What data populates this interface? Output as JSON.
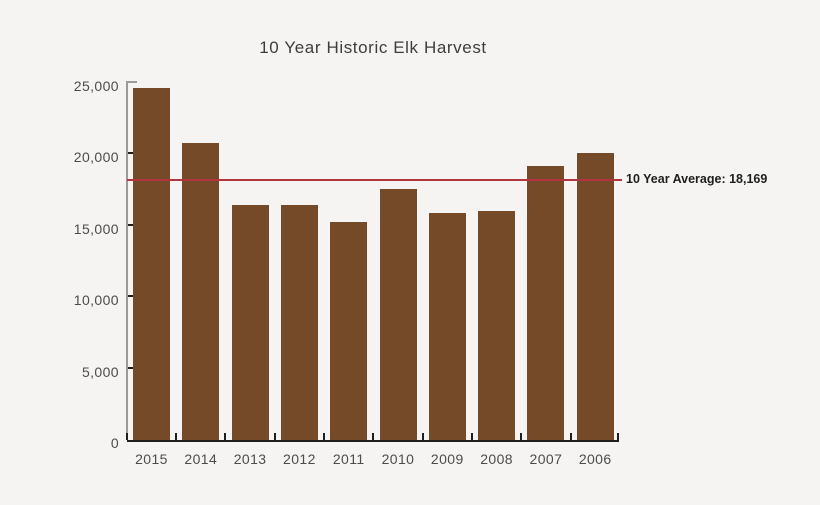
{
  "chart_data": {
    "type": "bar",
    "title": "10 Year Historic Elk Harvest",
    "categories": [
      "2015",
      "2014",
      "2013",
      "2012",
      "2011",
      "2010",
      "2009",
      "2008",
      "2007",
      "2006"
    ],
    "values": [
      24600,
      20700,
      16400,
      16400,
      15200,
      17500,
      15800,
      16000,
      19150,
      20050
    ],
    "xlabel": "",
    "ylabel": "",
    "ylim": [
      0,
      25000
    ],
    "grid": "off",
    "legend_position": "none",
    "y_ticks": [
      {
        "value": 25000,
        "label": "25,000"
      },
      {
        "value": 20000,
        "label": "20,000"
      },
      {
        "value": 15000,
        "label": "15,000"
      },
      {
        "value": 10000,
        "label": "10,000"
      },
      {
        "value": 5000,
        "label": "5,000"
      },
      {
        "value": 0,
        "label": "0"
      }
    ],
    "average_line": {
      "value": 18169,
      "label": "10 Year Average: 18,169"
    },
    "colors": {
      "background": "#f5f4f2",
      "bar": "#744a28",
      "average_line": "#b2343e",
      "axis_gray": "#9a9a9a",
      "tick_dark": "#1f1f1f",
      "text": "#4c4c4c",
      "title_text": "#3d3d3d",
      "average_label_text": "#1e1e1e"
    }
  }
}
